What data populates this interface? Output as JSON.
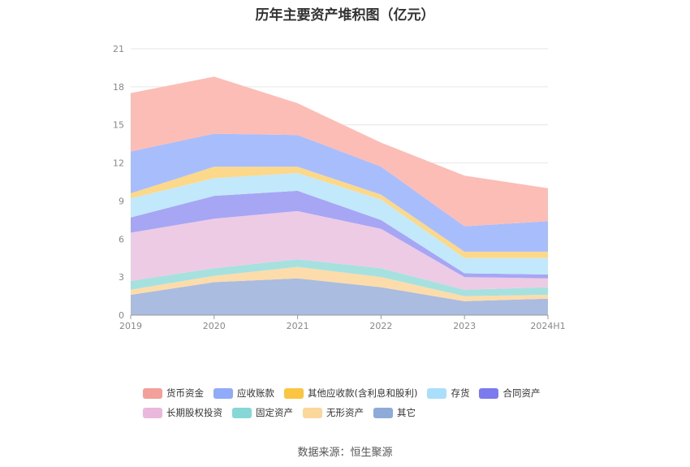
{
  "title": "历年主要资产堆积图（亿元）",
  "source": "数据来源：恒生聚源",
  "chart_data": {
    "type": "area",
    "stacked": true,
    "categories": [
      "2019",
      "2020",
      "2021",
      "2022",
      "2023",
      "2024H1"
    ],
    "ylim": [
      0,
      21
    ],
    "yticks": [
      "0",
      "3",
      "6",
      "9",
      "12",
      "15",
      "18",
      "21"
    ],
    "grid": true,
    "legend_position": "bottom",
    "series": [
      {
        "name": "其它",
        "color": "#aabde0",
        "values": [
          1.6,
          2.6,
          2.9,
          2.2,
          1.1,
          1.3
        ]
      },
      {
        "name": "无形资产",
        "color": "#fbdcaa",
        "values": [
          0.4,
          0.5,
          0.9,
          0.8,
          0.4,
          0.3
        ]
      },
      {
        "name": "固定资产",
        "color": "#a6e1e0",
        "values": [
          0.7,
          0.6,
          0.6,
          0.7,
          0.5,
          0.6
        ]
      },
      {
        "name": "长期股权投资",
        "color": "#eecbe4",
        "values": [
          3.8,
          3.9,
          3.8,
          3.1,
          1.0,
          0.7
        ]
      },
      {
        "name": "合同资产",
        "color": "#a6a6f5",
        "values": [
          1.2,
          1.8,
          1.6,
          0.7,
          0.3,
          0.3
        ]
      },
      {
        "name": "存货",
        "color": "#c2e9fb",
        "values": [
          1.5,
          1.4,
          1.4,
          1.6,
          1.2,
          1.3
        ]
      },
      {
        "name": "其他应收款(含利息和股利)",
        "color": "#fcd98a",
        "values": [
          0.4,
          0.9,
          0.5,
          0.4,
          0.5,
          0.5
        ]
      },
      {
        "name": "应收账款",
        "color": "#a8bdfb",
        "values": [
          3.3,
          2.6,
          2.5,
          2.2,
          2.0,
          2.4
        ]
      },
      {
        "name": "货币资金",
        "color": "#fbbdb6",
        "values": [
          4.6,
          4.5,
          2.5,
          1.9,
          4.0,
          2.6
        ]
      }
    ]
  },
  "legend": {
    "row1": [
      {
        "label": "货币资金",
        "color": "#f4a09a"
      },
      {
        "label": "应收账款",
        "color": "#8fabfa"
      },
      {
        "label": "其他应收款(含利息和股利)",
        "color": "#fbc441"
      },
      {
        "label": "存货",
        "color": "#a9dffa"
      },
      {
        "label": "合同资产",
        "color": "#7b7bef"
      }
    ],
    "row2": [
      {
        "label": "长期股权投资",
        "color": "#eab8dc"
      },
      {
        "label": "固定资产",
        "color": "#86d8d6"
      },
      {
        "label": "无形资产",
        "color": "#fcd79b"
      },
      {
        "label": "其它",
        "color": "#8eaad8"
      }
    ]
  }
}
